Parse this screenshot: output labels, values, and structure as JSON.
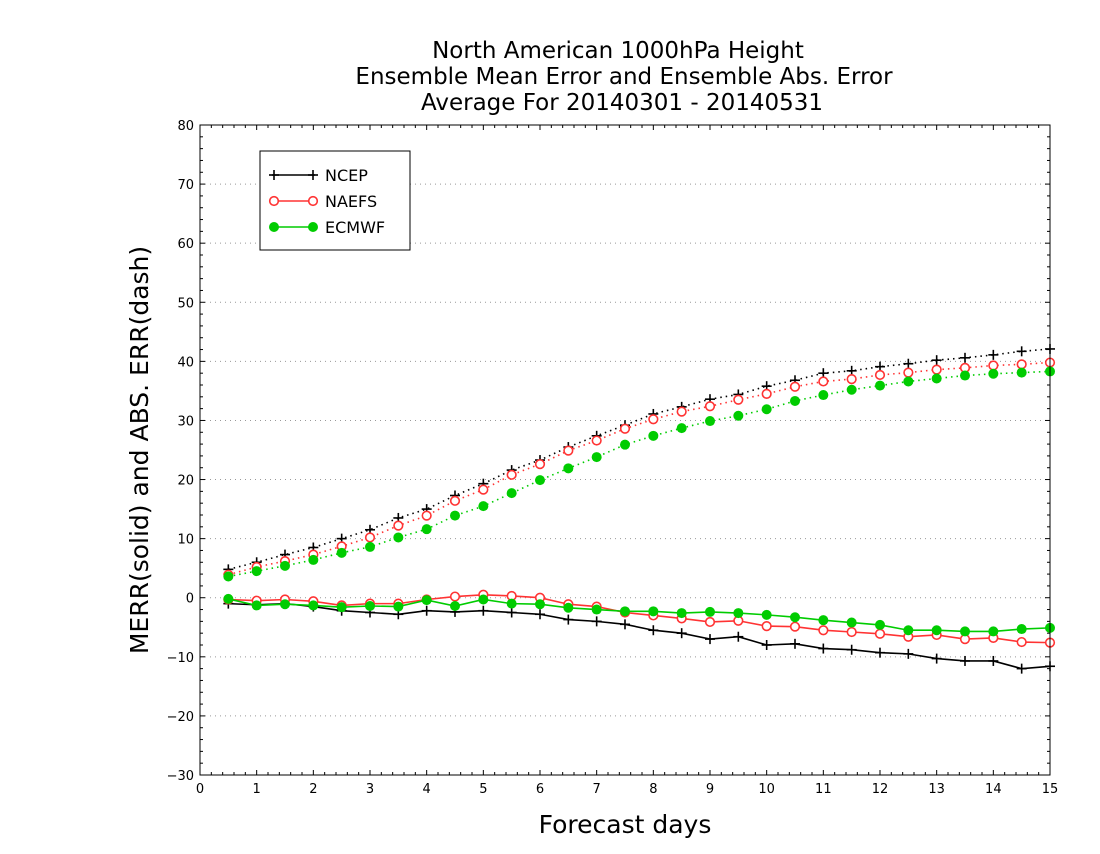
{
  "chart_data": {
    "type": "line",
    "title": [
      "North American 1000hPa Height",
      "Ensemble Mean Error and Ensemble Abs. Error",
      "Average For 20140301 - 20140531"
    ],
    "xlabel": "Forecast days",
    "ylabel": "MERR(solid) and ABS. ERR(dash)",
    "xlim": [
      0,
      15
    ],
    "ylim": [
      -30,
      80
    ],
    "xticks": [
      "0",
      "1",
      "2",
      "3",
      "4",
      "5",
      "6",
      "7",
      "8",
      "9",
      "10",
      "11",
      "12",
      "13",
      "14",
      "15"
    ],
    "yticks": [
      "−30",
      "−20",
      "−10",
      "0",
      "10",
      "20",
      "30",
      "40",
      "50",
      "60",
      "70",
      "80"
    ],
    "ytick_values": [
      -30,
      -20,
      -10,
      0,
      10,
      20,
      30,
      40,
      50,
      60,
      70,
      80
    ],
    "grid": "horizontal dotted",
    "legend_position": "top-left",
    "x": [
      0.5,
      1,
      1.5,
      2,
      2.5,
      3,
      3.5,
      4,
      4.5,
      5,
      5.5,
      6,
      6.5,
      7,
      7.5,
      8,
      8.5,
      9,
      9.5,
      10,
      10.5,
      11,
      11.5,
      12,
      12.5,
      13,
      13.5,
      14,
      14.5,
      15
    ],
    "series": [
      {
        "name": "NCEP",
        "color": "#000000",
        "marker": "plus",
        "mean_error": [
          -1,
          -1.2,
          -1.0,
          -1.5,
          -2.2,
          -2.5,
          -2.8,
          -2.2,
          -2.4,
          -2.2,
          -2.5,
          -2.8,
          -3.7,
          -4.0,
          -4.5,
          -5.5,
          -6.0,
          -7.0,
          -6.6,
          -8.0,
          -7.8,
          -8.6,
          -8.8,
          -9.3,
          -9.5,
          -10.3,
          -10.7,
          -10.7,
          -12.0,
          -11.6
        ],
        "abs_error": [
          4.8,
          6.0,
          7.3,
          8.5,
          10.0,
          11.5,
          13.5,
          15.0,
          17.3,
          19.3,
          21.6,
          23.3,
          25.5,
          27.4,
          29.2,
          31.1,
          32.3,
          33.6,
          34.4,
          35.8,
          36.8,
          38.0,
          38.4,
          39.1,
          39.6,
          40.2,
          40.6,
          41.1,
          41.7,
          42.1
        ]
      },
      {
        "name": "NAEFS",
        "color": "#ff3333",
        "marker": "open-circle",
        "mean_error": [
          -0.3,
          -0.5,
          -0.3,
          -0.6,
          -1.3,
          -1.0,
          -1.0,
          -0.3,
          0.2,
          0.5,
          0.3,
          0.0,
          -1.1,
          -1.5,
          -2.5,
          -3.0,
          -3.5,
          -4.1,
          -3.9,
          -4.8,
          -4.9,
          -5.5,
          -5.8,
          -6.1,
          -6.6,
          -6.3,
          -7.0,
          -6.8,
          -7.5,
          -7.6
        ],
        "abs_error": [
          3.9,
          5.2,
          6.2,
          7.3,
          8.7,
          10.2,
          12.2,
          13.9,
          16.4,
          18.3,
          20.8,
          22.6,
          24.9,
          26.6,
          28.6,
          30.2,
          31.5,
          32.4,
          33.5,
          34.5,
          35.7,
          36.6,
          37.0,
          37.7,
          38.1,
          38.6,
          38.9,
          39.3,
          39.5,
          39.8
        ]
      },
      {
        "name": "ECMWF",
        "color": "#00cc00",
        "marker": "filled-circle",
        "mean_error": [
          -0.2,
          -1.3,
          -1.1,
          -1.3,
          -1.6,
          -1.4,
          -1.5,
          -0.4,
          -1.4,
          -0.3,
          -1.0,
          -1.1,
          -1.7,
          -2.0,
          -2.3,
          -2.3,
          -2.6,
          -2.4,
          -2.6,
          -2.9,
          -3.3,
          -3.8,
          -4.2,
          -4.6,
          -5.5,
          -5.5,
          -5.7,
          -5.7,
          -5.3,
          -5.1
        ],
        "abs_error": [
          3.6,
          4.5,
          5.4,
          6.4,
          7.6,
          8.6,
          10.2,
          11.6,
          13.9,
          15.5,
          17.7,
          19.9,
          21.9,
          23.8,
          25.9,
          27.4,
          28.7,
          29.9,
          30.8,
          31.9,
          33.3,
          34.3,
          35.2,
          35.9,
          36.6,
          37.1,
          37.6,
          37.9,
          38.1,
          38.3
        ]
      }
    ]
  }
}
